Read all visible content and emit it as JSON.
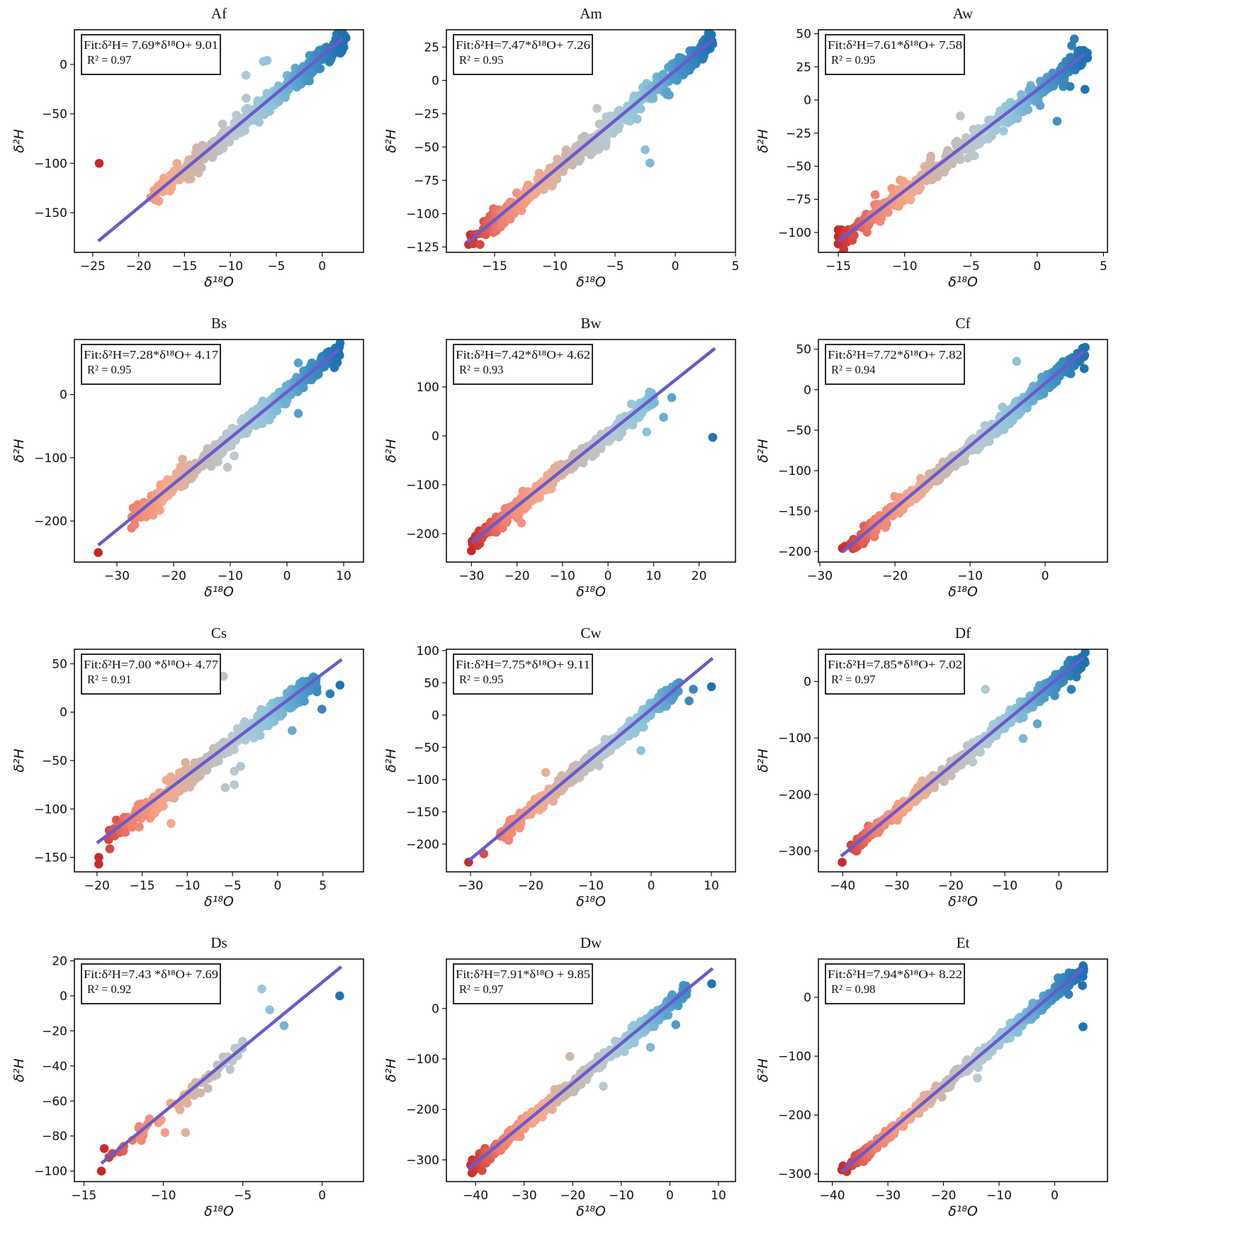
{
  "figure": {
    "xlabel": "δ¹⁸O",
    "ylabel": "δ²H",
    "line_color": "#6a5acd",
    "colormap": [
      "#c62828",
      "#f08070",
      "#f6a98a",
      "#c9b8b0",
      "#b9c9d2",
      "#8ec4da",
      "#4a98c8",
      "#1f72b0"
    ]
  },
  "chart_data": [
    {
      "type": "scatter",
      "title": "Af",
      "fit_label": "Fit:δ²H= 7.69*δ¹⁸O+ 9.01",
      "r2_label": "R² = 0.97",
      "slope": 7.69,
      "intercept": 9.01,
      "xlim": [
        -27,
        4.5
      ],
      "ylim": [
        -190,
        35
      ],
      "xticks": [
        -25,
        -20,
        -15,
        -10,
        -5,
        0
      ],
      "yticks": [
        -150,
        -100,
        -50,
        0
      ],
      "line_x": [
        -24.4,
        2.2
      ],
      "cloud_x": [
        -18.5,
        2.3
      ],
      "spread": 9,
      "n": 420,
      "outliers": [
        [
          -24.3,
          -100
        ],
        [
          -8.3,
          -11
        ],
        [
          -6.4,
          3
        ],
        [
          -6.0,
          4
        ]
      ]
    },
    {
      "type": "scatter",
      "title": "Am",
      "fit_label": "Fit:δ²H=7.47*δ¹⁸O+ 7.26",
      "r2_label": "R² = 0.95",
      "slope": 7.47,
      "intercept": 7.26,
      "xlim": [
        -19,
        5
      ],
      "ylim": [
        -129,
        38
      ],
      "xticks": [
        -15,
        -10,
        -5,
        0,
        5
      ],
      "yticks": [
        -125,
        -100,
        -75,
        -50,
        -25,
        0,
        25
      ],
      "line_x": [
        -17.3,
        3.1
      ],
      "cloud_x": [
        -17.2,
        3.1
      ],
      "spread": 7,
      "n": 420,
      "outliers": [
        [
          -2.5,
          -52
        ],
        [
          -2.1,
          -62
        ],
        [
          -14.5,
          -110
        ],
        [
          -14.2,
          -107
        ],
        [
          -13.7,
          -104
        ],
        [
          -0.5,
          -11
        ],
        [
          -6.5,
          -21
        ]
      ]
    },
    {
      "type": "scatter",
      "title": "Aw",
      "fit_label": "Fit:δ²H=7.61*δ¹⁸O+ 7.58",
      "r2_label": "R² = 0.95",
      "slope": 7.61,
      "intercept": 7.58,
      "xlim": [
        -16.5,
        5.3
      ],
      "ylim": [
        -115,
        53
      ],
      "xticks": [
        -15,
        -10,
        -5,
        0,
        5
      ],
      "yticks": [
        -100,
        -75,
        -50,
        -25,
        0,
        25,
        50
      ],
      "line_x": [
        -15.0,
        3.6
      ],
      "cloud_x": [
        -15.0,
        3.6
      ],
      "spread": 7,
      "n": 420,
      "outliers": [
        [
          2.8,
          46
        ],
        [
          2.6,
          41
        ],
        [
          3.6,
          8
        ],
        [
          1.5,
          -16
        ],
        [
          -5.8,
          -12
        ],
        [
          -14.4,
          -107
        ],
        [
          -15.0,
          -98
        ]
      ]
    },
    {
      "type": "scatter",
      "title": "Bs",
      "fit_label": "Fit:δ²H=7.28*δ¹⁸O+ 4.17",
      "r2_label": "R² = 0.95",
      "slope": 7.28,
      "intercept": 4.17,
      "xlim": [
        -37.5,
        13.5
      ],
      "ylim": [
        -265,
        87
      ],
      "xticks": [
        -30,
        -20,
        -10,
        0,
        10
      ],
      "yticks": [
        -200,
        -100,
        0
      ],
      "line_x": [
        -33.3,
        9.2
      ],
      "cloud_x": [
        -28,
        9.2
      ],
      "spread": 14,
      "n": 420,
      "outliers": [
        [
          -33.3,
          -250
        ],
        [
          9.3,
          62
        ],
        [
          2.0,
          50
        ],
        [
          -9.3,
          -97
        ],
        [
          2.0,
          -30
        ],
        [
          -10.5,
          -115
        ]
      ]
    },
    {
      "type": "scatter",
      "title": "Bw",
      "fit_label": "Fit:δ²H=7.42*δ¹⁸O+ 4.62",
      "r2_label": "R² = 0.93",
      "slope": 7.42,
      "intercept": 4.62,
      "xlim": [
        -35.5,
        28
      ],
      "ylim": [
        -258,
        197
      ],
      "xticks": [
        -30,
        -20,
        -10,
        0,
        10,
        20
      ],
      "yticks": [
        -200,
        -100,
        0,
        100
      ],
      "line_x": [
        -30.0,
        23.5
      ],
      "cloud_x": [
        -30,
        10
      ],
      "spread": 14,
      "n": 420,
      "outliers": [
        [
          -30.0,
          -235
        ],
        [
          14.0,
          78
        ],
        [
          12.2,
          38
        ],
        [
          23.0,
          -3
        ],
        [
          8.5,
          8
        ],
        [
          -19.0,
          -178
        ]
      ]
    },
    {
      "type": "scatter",
      "title": "Cf",
      "fit_label": "Fit:δ²H=7.72*δ¹⁸O+ 7.82",
      "r2_label": "R² = 0.94",
      "slope": 7.72,
      "intercept": 7.82,
      "xlim": [
        -30.2,
        8.3
      ],
      "ylim": [
        -213,
        62
      ],
      "xticks": [
        -30,
        -20,
        -10,
        0
      ],
      "yticks": [
        -200,
        -150,
        -100,
        -50,
        0,
        50
      ],
      "line_x": [
        -27.0,
        5.2
      ],
      "cloud_x": [
        -27.0,
        5.2
      ],
      "spread": 9,
      "n": 450,
      "outliers": [
        [
          -27.0,
          -196
        ],
        [
          -22.7,
          -177
        ],
        [
          -3.8,
          35
        ],
        [
          5.1,
          50
        ],
        [
          5.2,
          26
        ],
        [
          4.3,
          45
        ]
      ]
    },
    {
      "type": "scatter",
      "title": "Cs",
      "fit_label": "Fit:δ²H=7.00 *δ¹⁸O+ 4.77",
      "r2_label": "R² = 0.91",
      "slope": 7.0,
      "intercept": 4.77,
      "xlim": [
        -22.5,
        9.5
      ],
      "ylim": [
        -165,
        65
      ],
      "xticks": [
        -20,
        -15,
        -10,
        -5,
        0,
        5
      ],
      "yticks": [
        -150,
        -100,
        -50,
        0,
        50
      ],
      "line_x": [
        -20.0,
        7.1
      ],
      "cloud_x": [
        -18.8,
        4.2
      ],
      "spread": 9,
      "n": 450,
      "outliers": [
        [
          -19.8,
          -150
        ],
        [
          -19.8,
          -157
        ],
        [
          -6.0,
          37
        ],
        [
          6.9,
          28
        ],
        [
          5.8,
          19
        ],
        [
          4.9,
          3
        ],
        [
          -11.8,
          -115
        ],
        [
          -5.8,
          -78
        ],
        [
          -4.8,
          -75
        ],
        [
          -4.1,
          -56
        ],
        [
          -4.8,
          -61
        ],
        [
          1.6,
          -19
        ]
      ]
    },
    {
      "type": "scatter",
      "title": "Cw",
      "fit_label": "Fit:δ²H=7.75*δ¹⁸O+ 9.11",
      "r2_label": "R² = 0.95",
      "slope": 7.75,
      "intercept": 9.11,
      "xlim": [
        -34,
        14
      ],
      "ylim": [
        -243,
        102
      ],
      "xticks": [
        -30,
        -20,
        -10,
        0,
        10
      ],
      "yticks": [
        -200,
        -150,
        -100,
        -50,
        0,
        50,
        100
      ],
      "line_x": [
        -30.3,
        10.2
      ],
      "cloud_x": [
        -25,
        4.5
      ],
      "spread": 10,
      "n": 450,
      "outliers": [
        [
          -30.3,
          -228
        ],
        [
          -27.8,
          -215
        ],
        [
          -24.3,
          -180
        ],
        [
          -17.5,
          -89
        ],
        [
          -1.7,
          -55
        ],
        [
          6.3,
          22
        ],
        [
          7.0,
          40
        ],
        [
          10.0,
          44
        ]
      ]
    },
    {
      "type": "scatter",
      "title": "Df",
      "fit_label": "Fit:δ²H=7.85*δ¹⁸O+ 7.02",
      "r2_label": "R² = 0.97",
      "slope": 7.85,
      "intercept": 7.02,
      "xlim": [
        -44.5,
        9
      ],
      "ylim": [
        -337,
        57
      ],
      "xticks": [
        -40,
        -30,
        -20,
        -10,
        0
      ],
      "yticks": [
        -300,
        -200,
        -100,
        0
      ],
      "line_x": [
        -40.3,
        4.5
      ],
      "cloud_x": [
        -38.5,
        4.8
      ],
      "spread": 12,
      "n": 480,
      "outliers": [
        [
          -40.1,
          -320
        ],
        [
          -13.6,
          -14
        ],
        [
          -6.6,
          -101
        ],
        [
          2.3,
          -14
        ],
        [
          -4.0,
          -75
        ]
      ]
    },
    {
      "type": "scatter",
      "title": "Ds",
      "fit_label": "Fit:δ²H=7.43 *δ¹⁸O+ 7.69",
      "r2_label": "R² = 0.92",
      "slope": 7.43,
      "intercept": 7.69,
      "xlim": [
        -15.6,
        2.6
      ],
      "ylim": [
        -106,
        21
      ],
      "xticks": [
        -15,
        -10,
        -5,
        0
      ],
      "yticks": [
        -100,
        -80,
        -60,
        -40,
        -20,
        0,
        20
      ],
      "line_x": [
        -13.9,
        1.2
      ],
      "cloud_x": [
        -13.3,
        -5.0
      ],
      "spread": 3.5,
      "n": 60,
      "outliers": [
        [
          -13.9,
          -100
        ],
        [
          -3.8,
          4
        ],
        [
          -3.3,
          -8
        ],
        [
          -2.4,
          -17
        ],
        [
          1.1,
          0
        ],
        [
          -9.9,
          -78
        ],
        [
          -8.6,
          -78
        ],
        [
          -5.0,
          -26
        ],
        [
          -5.5,
          -30
        ],
        [
          -5.8,
          -42
        ]
      ]
    },
    {
      "type": "scatter",
      "title": "Dw",
      "fit_label": "Fit:δ²H=7.91*δ¹⁸O + 9.85",
      "r2_label": "R² = 0.97",
      "slope": 7.91,
      "intercept": 9.85,
      "xlim": [
        -46,
        13.5
      ],
      "ylim": [
        -343,
        98
      ],
      "xticks": [
        -40,
        -30,
        -20,
        -10,
        0,
        10
      ],
      "yticks": [
        -300,
        -200,
        -100,
        0
      ],
      "line_x": [
        -41.5,
        8.8
      ],
      "cloud_x": [
        -41.5,
        3.5
      ],
      "spread": 12,
      "n": 480,
      "outliers": [
        [
          8.6,
          49
        ],
        [
          -20.6,
          -95
        ],
        [
          -13.7,
          -154
        ],
        [
          1.2,
          -32
        ],
        [
          -4.0,
          -77
        ],
        [
          -41.0,
          -310
        ],
        [
          -40.5,
          -320
        ]
      ]
    },
    {
      "type": "scatter",
      "title": "Et",
      "fit_label": "Fit:δ²H=7.94*δ¹⁸O+ 8.22",
      "r2_label": "R² = 0.98",
      "slope": 7.94,
      "intercept": 8.22,
      "xlim": [
        -42.5,
        9.5
      ],
      "ylim": [
        -313,
        65
      ],
      "xticks": [
        -40,
        -30,
        -20,
        -10,
        0
      ],
      "yticks": [
        -300,
        -200,
        -100,
        0
      ],
      "line_x": [
        -38.3,
        5.1
      ],
      "cloud_x": [
        -38.3,
        5.1
      ],
      "spread": 9,
      "n": 480,
      "outliers": [
        [
          5.1,
          -50
        ],
        [
          5.0,
          20
        ],
        [
          2.5,
          5
        ],
        [
          0.6,
          33
        ],
        [
          -38.3,
          -293
        ],
        [
          -13.9,
          -137
        ]
      ]
    }
  ]
}
